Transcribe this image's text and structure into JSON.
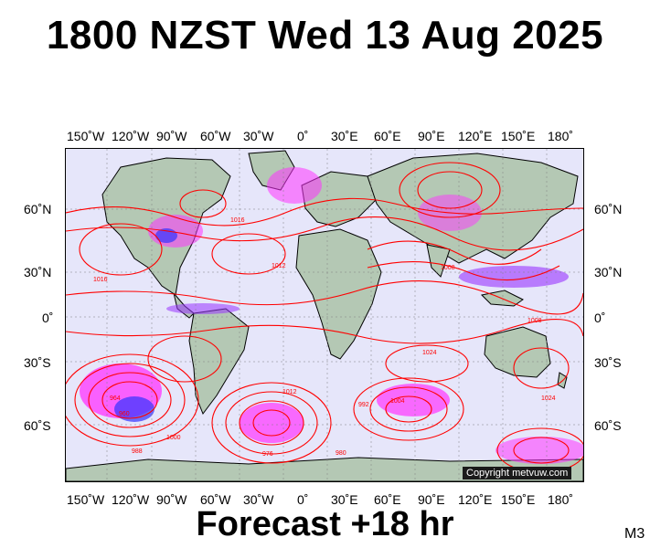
{
  "title": "1800 NZST Wed 13 Aug 2025",
  "footer": "Forecast +18 hr",
  "model_code": "M3",
  "copyright": "Copyright metvuw.com",
  "lon_labels": [
    "150˚W",
    "120˚W",
    "90˚W",
    "60˚W",
    "30˚W",
    "0˚",
    "30˚E",
    "60˚E",
    "90˚E",
    "120˚E",
    "150˚E",
    "180˚"
  ],
  "lat_labels": [
    "60˚N",
    "30˚N",
    "0˚",
    "30˚S",
    "60˚S"
  ],
  "isobar_labels": [
    "1016",
    "1012",
    "1008",
    "1024",
    "1000",
    "988",
    "980",
    "976",
    "964",
    "960",
    "1004",
    "1016",
    "1024",
    "992",
    "1008",
    "1012"
  ],
  "colors": {
    "ocean": "#e6e6fa",
    "land": "#b4c8b4",
    "isobar": "#ff0000",
    "precip_light": "#ff66ff",
    "precip_mid": "#cc00cc",
    "precip_heavy": "#3333ff"
  }
}
